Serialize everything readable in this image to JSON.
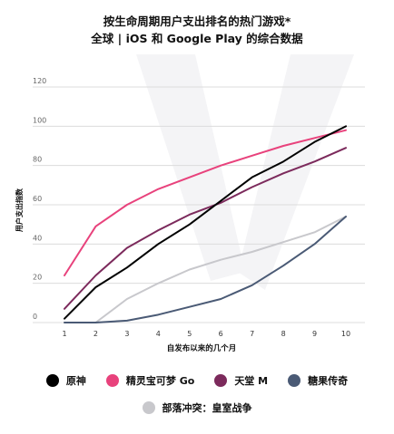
{
  "chart_data": {
    "type": "line",
    "title_lines": [
      "按生命周期用户支出排名的热门游戏*",
      "全球 | iOS 和 Google Play 的综合数据"
    ],
    "xlabel": "自发布以来的几个月",
    "ylabel": "用户支出指数",
    "x": [
      1,
      2,
      3,
      4,
      5,
      6,
      7,
      8,
      9,
      10
    ],
    "xlim": [
      1,
      10
    ],
    "ylim": [
      0,
      120
    ],
    "yticks": [
      0,
      20,
      40,
      60,
      80,
      100,
      120
    ],
    "grid": true,
    "legend_position": "bottom",
    "series": [
      {
        "name": "原神",
        "color": "#000000",
        "values": [
          2,
          18,
          28,
          40,
          50,
          62,
          74,
          82,
          92,
          100
        ]
      },
      {
        "name": "精灵宝可梦 Go",
        "color": "#e8427c",
        "values": [
          24,
          49,
          60,
          68,
          74,
          80,
          85,
          90,
          94,
          98
        ]
      },
      {
        "name": "天堂 M",
        "color": "#7c2a5c",
        "values": [
          7,
          24,
          38,
          47,
          55,
          61,
          69,
          76,
          82,
          89
        ]
      },
      {
        "name": "糖果传奇",
        "color": "#4a5a75",
        "values": [
          0,
          0,
          1,
          4,
          8,
          12,
          19,
          29,
          40,
          54
        ]
      },
      {
        "name": "部落冲突：皇室战争",
        "color": "#c8c8cc",
        "values": [
          0,
          0,
          12,
          20,
          27,
          32,
          36,
          41,
          46,
          54
        ]
      }
    ]
  }
}
